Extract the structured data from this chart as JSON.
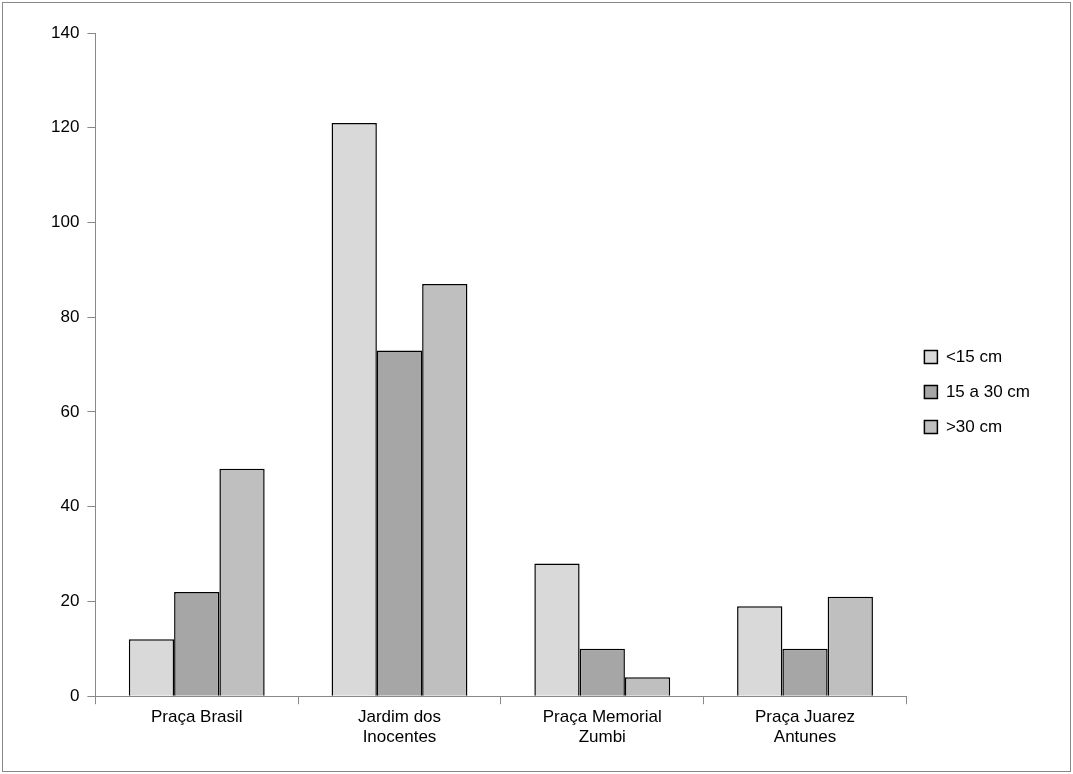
{
  "chart_data": {
    "type": "bar",
    "categories": [
      "Praça Brasil",
      "Jardim dos Inocentes",
      "Praça Memorial Zumbi",
      "Praça Juarez Antunes"
    ],
    "series": [
      {
        "name": "<15 cm",
        "color": "#d9d9d9",
        "values": [
          12,
          121,
          28,
          19
        ]
      },
      {
        "name": "15 a 30 cm",
        "color": "#a6a6a6",
        "values": [
          22,
          73,
          10,
          10
        ]
      },
      {
        "name": ">30 cm",
        "color": "#bfbfbf",
        "values": [
          48,
          87,
          4,
          21
        ]
      }
    ],
    "ylim": [
      0,
      140
    ],
    "yticks": [
      0,
      20,
      40,
      60,
      80,
      100,
      120,
      140
    ],
    "grid": false,
    "legend": "right"
  }
}
